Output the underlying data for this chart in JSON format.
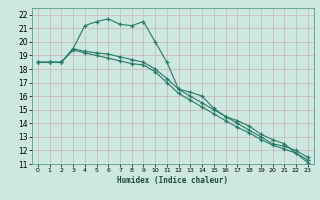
{
  "line1_x": [
    0,
    1,
    2,
    3,
    4,
    5,
    6,
    7,
    8,
    9,
    10,
    11,
    12,
    13,
    14,
    15,
    16,
    17,
    18,
    19,
    20,
    21,
    22,
    23
  ],
  "line1_y": [
    18.5,
    18.5,
    18.5,
    19.5,
    21.2,
    21.5,
    21.7,
    21.3,
    21.2,
    21.5,
    20.0,
    18.5,
    16.5,
    16.3,
    16.0,
    15.1,
    14.5,
    14.2,
    13.8,
    13.2,
    12.8,
    12.5,
    11.8,
    11.1
  ],
  "line2_x": [
    0,
    1,
    2,
    3,
    4,
    5,
    6,
    7,
    8,
    9,
    10,
    11,
    12,
    13,
    14,
    15,
    16,
    17,
    18,
    19,
    20,
    21,
    22,
    23
  ],
  "line2_y": [
    18.5,
    18.5,
    18.5,
    19.5,
    19.3,
    19.2,
    19.1,
    18.9,
    18.7,
    18.5,
    18.0,
    17.3,
    16.5,
    16.0,
    15.5,
    15.0,
    14.5,
    14.0,
    13.5,
    13.0,
    12.5,
    12.3,
    12.0,
    11.5
  ],
  "line3_x": [
    0,
    1,
    2,
    3,
    4,
    5,
    6,
    7,
    8,
    9,
    10,
    11,
    12,
    13,
    14,
    15,
    16,
    17,
    18,
    19,
    20,
    21,
    22,
    23
  ],
  "line3_y": [
    18.5,
    18.5,
    18.5,
    19.4,
    19.2,
    19.0,
    18.8,
    18.6,
    18.4,
    18.3,
    17.8,
    17.0,
    16.2,
    15.7,
    15.2,
    14.7,
    14.2,
    13.7,
    13.3,
    12.8,
    12.4,
    12.1,
    11.8,
    11.3
  ],
  "color": "#2a7a68",
  "bg_color": "#cce8e0",
  "grid_major_color": "#b8d8d0",
  "grid_minor_color": "#d8ece8",
  "xlabel": "Humidex (Indice chaleur)",
  "xlim": [
    -0.5,
    23.5
  ],
  "ylim": [
    11,
    22.5
  ],
  "yticks": [
    11,
    12,
    13,
    14,
    15,
    16,
    17,
    18,
    19,
    20,
    21,
    22
  ],
  "xticks": [
    0,
    1,
    2,
    3,
    4,
    5,
    6,
    7,
    8,
    9,
    10,
    11,
    12,
    13,
    14,
    15,
    16,
    17,
    18,
    19,
    20,
    21,
    22,
    23
  ]
}
